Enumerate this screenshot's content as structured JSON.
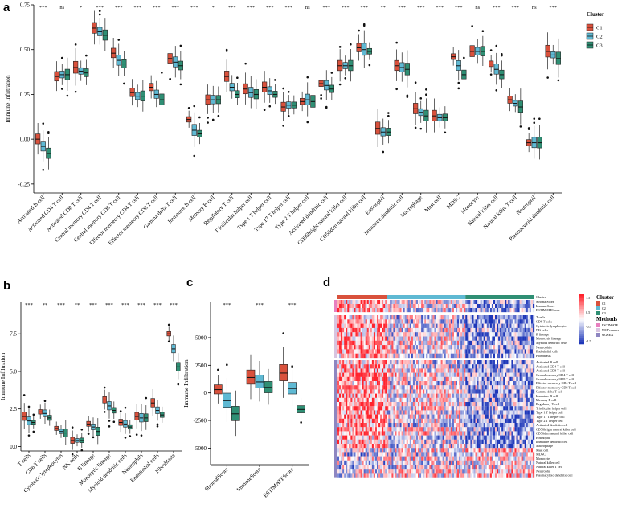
{
  "colors": {
    "C1": "#d9513c",
    "C2": "#5fb9d3",
    "C3": "#2f8f74",
    "methods": {
      "ESTIMATE": "#e87fbf",
      "MCPcounter": "#d8c4e0",
      "ssGSEA": "#8e86c1"
    }
  },
  "panels": {
    "a": "a",
    "b": "b",
    "c": "c",
    "d": "d"
  },
  "chart_data": [
    {
      "panel": "a",
      "type": "boxplot",
      "ylabel": "Immune Infiltration",
      "ylim": [
        -0.3,
        0.75
      ],
      "yticks": [
        "0.75",
        "0.50",
        "0.25",
        "0.00",
        "-0.25"
      ],
      "ytick_values": [
        0.75,
        0.5,
        0.25,
        0.0,
        -0.25
      ],
      "legend": {
        "title": "Cluster",
        "items": [
          "C1",
          "C2",
          "C3"
        ]
      },
      "categories": [
        "Activated B cell",
        "Activated CD4 T cell",
        "Activated CD8 T cell",
        "Central memory CD4 T cell",
        "Central memory CD8 T cell",
        "Effector memeory CD4 T cell",
        "Effector memeory CD8 T cell",
        "Gamma delta T cell",
        "Immature  B cell",
        "Memory B cell",
        "Regulatory T cell",
        "T follicular helper cell",
        "Type 1 T helper cell",
        "Type 17 T helper cell",
        "Type 2 T helper cell",
        "Activated dendritic cell",
        "CD56bright natural killer cell",
        "CD56dim natural killer cell",
        "Eosinophil",
        "Immature dendritic cell",
        "Macrophage",
        "Mast cell",
        "MDSC",
        "Monocyte",
        "Natural killer cell",
        "Natural killer T cell",
        "Neutrophil",
        "Plasmacytoid dendritic cell"
      ],
      "significance": [
        "***",
        "ns",
        "*",
        "***",
        "***",
        "***",
        "***",
        "***",
        "***",
        "*",
        "***",
        "***",
        "***",
        "***",
        "ns",
        "***",
        "***",
        "***",
        "**",
        "***",
        "***",
        "***",
        "***",
        "ns",
        "***",
        "***",
        "ns",
        "***"
      ],
      "series": [
        {
          "name": "C1",
          "medians": [
            0.0,
            0.35,
            0.4,
            0.62,
            0.48,
            0.26,
            0.29,
            0.45,
            0.11,
            0.22,
            0.35,
            0.28,
            0.29,
            0.18,
            0.21,
            0.31,
            0.41,
            0.51,
            0.06,
            0.41,
            0.17,
            0.13,
            0.46,
            0.49,
            0.42,
            0.22,
            -0.02,
            0.49
          ]
        },
        {
          "name": "C2",
          "medians": [
            -0.04,
            0.36,
            0.38,
            0.6,
            0.44,
            0.24,
            0.25,
            0.43,
            0.05,
            0.22,
            0.29,
            0.26,
            0.27,
            0.19,
            0.22,
            0.3,
            0.41,
            0.5,
            0.04,
            0.4,
            0.15,
            0.12,
            0.41,
            0.49,
            0.39,
            0.2,
            -0.02,
            0.47
          ]
        },
        {
          "name": "C3",
          "medians": [
            -0.08,
            0.36,
            0.37,
            0.58,
            0.42,
            0.24,
            0.22,
            0.41,
            0.03,
            0.22,
            0.25,
            0.25,
            0.25,
            0.19,
            0.21,
            0.28,
            0.41,
            0.49,
            0.04,
            0.39,
            0.13,
            0.12,
            0.36,
            0.49,
            0.36,
            0.18,
            -0.02,
            0.45
          ]
        }
      ]
    },
    {
      "panel": "b",
      "type": "boxplot",
      "ylabel": "Immune Infiltration",
      "ylim": [
        -0.3,
        9.6
      ],
      "yticks": [
        "7.5",
        "5.0",
        "2.5",
        "0.0"
      ],
      "ytick_values": [
        7.5,
        5.0,
        2.5,
        0.0
      ],
      "categories": [
        "T cells",
        "CD8 T cells",
        "Cytotoxic lymphocytes",
        "NK cells",
        "B lineage",
        "Monocytic lineage",
        "Myeloid dendritic cells",
        "Neutrophils",
        "Endothelial cells",
        "Fibroblasts"
      ],
      "significance": [
        "***",
        "**",
        "***",
        "**",
        "***",
        "***",
        "***",
        "***",
        "***",
        "***"
      ],
      "series": [
        {
          "name": "C1",
          "medians": [
            2.0,
            2.3,
            1.2,
            0.4,
            1.5,
            3.1,
            1.6,
            2.0,
            2.9,
            7.5
          ]
        },
        {
          "name": "C2",
          "medians": [
            1.7,
            2.2,
            1.0,
            0.4,
            1.3,
            2.7,
            1.5,
            1.9,
            2.4,
            6.5
          ]
        },
        {
          "name": "C3",
          "medians": [
            1.6,
            1.9,
            0.9,
            0.4,
            1.0,
            2.4,
            1.3,
            1.9,
            2.1,
            5.3
          ]
        }
      ]
    },
    {
      "panel": "c",
      "type": "boxplot",
      "ylabel": "Immune Infiltration",
      "ylim": [
        -6500,
        8200
      ],
      "yticks": [
        "5000",
        "2500",
        "0",
        "-2500",
        "-5000"
      ],
      "ytick_values": [
        5000,
        2500,
        0,
        -2500,
        -5000
      ],
      "categories": [
        "StromalScore",
        "ImmuneScore",
        "ESTIMATEScore"
      ],
      "significance": [
        "***",
        "***",
        "***"
      ],
      "series": [
        {
          "name": "C1",
          "medians": [
            300,
            1400,
            1800
          ]
        },
        {
          "name": "C2",
          "medians": [
            -700,
            1000,
            400
          ]
        },
        {
          "name": "C3",
          "medians": [
            -1900,
            500,
            -1500
          ]
        }
      ]
    },
    {
      "panel": "d",
      "type": "heatmap",
      "top_rows": [
        "Cluster",
        "StromalScore",
        "ImmuneScore",
        "ESTIMATEScore"
      ],
      "group2_rows": [
        "T cells",
        "CD8 T cells",
        "Cytotoxic lymphocytes",
        "NK cells",
        "B lineage",
        "Monocytic lineage",
        "Myeloid dendritic cells",
        "Neutrophils",
        "Endothelial cells",
        "Fibroblasts"
      ],
      "group3_rows": [
        "Activated B cell",
        "Activated CD4 T cell",
        "Activated CD8 T cell",
        "Central memory CD4 T cell",
        "Central memory CD8 T cell",
        "Effector memeory CD4 T cell",
        "Effector memeory CD8 T cell",
        "Gamma delta T cell",
        "Immature  B cell",
        "Memory B cell",
        "Regulatory T cell",
        "T follicular helper cell",
        "Type 1 T helper cell",
        "Type 17 T helper cell",
        "Type 2 T helper cell",
        "Activated dendritic cell",
        "CD56bright natural killer cell",
        "CD56dim natural killer cell",
        "Eosinophil",
        "Immature dendritic cell",
        "Macrophage",
        "Mast cell",
        "MDSC",
        "Monocyte",
        "Natural killer cell",
        "Natural killer T cell",
        "Neutrophil",
        "Plasmacytoid dendritic cell"
      ],
      "colorbar_ticks": [
        "1.5",
        "0.5",
        "-0.5",
        "-1.5"
      ],
      "legend_cluster": {
        "title": "Cluster",
        "items": [
          "C1",
          "C2",
          "C3"
        ]
      },
      "legend_methods": {
        "title": "Methods",
        "items": [
          "ESTIMATE",
          "MCPcounter",
          "ssGSEA"
        ]
      }
    }
  ]
}
